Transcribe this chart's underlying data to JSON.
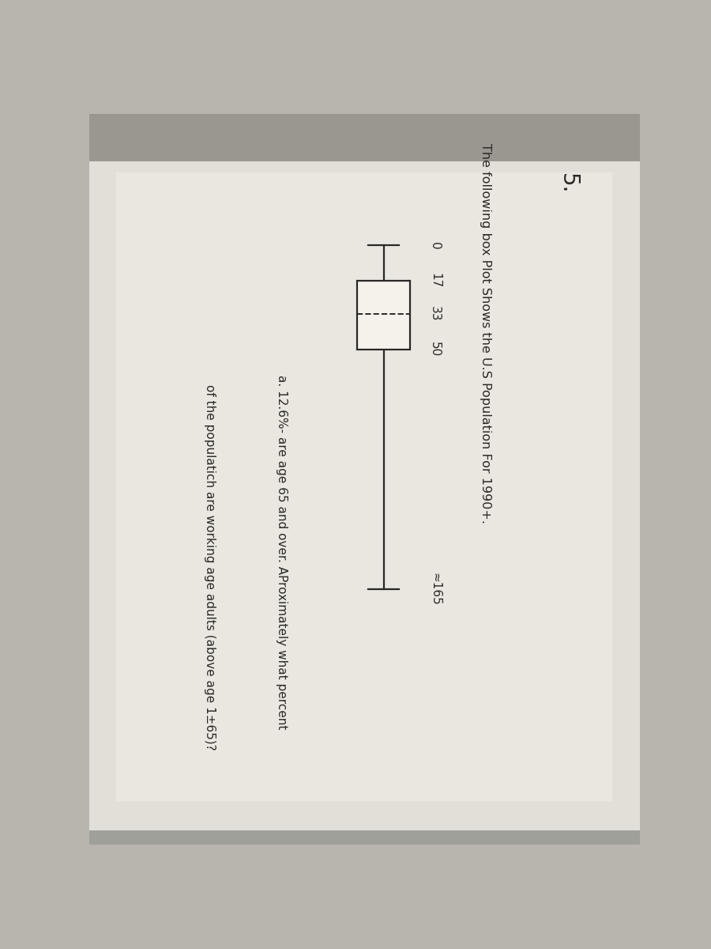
{
  "bg_top_color": "#b8b4ae",
  "bg_bottom_color": "#c8c4be",
  "page_color": "#dedad4",
  "page_inner_color": "#e8e5df",
  "title_number": "5.",
  "title_text": "The following box Plot Shows the U.S Population For 1990+.",
  "boxplot": {
    "min_val": 0,
    "q1": 17,
    "median": 33,
    "q3": 50,
    "max_val": 165
  },
  "tick_labels": [
    "0",
    "17",
    "33",
    "50",
    "≈165"
  ],
  "tick_values": [
    0,
    17,
    33,
    50,
    165
  ],
  "question_a": "a. 12.6%- are age 65 and over. AProximately what percent",
  "question_b": "of the populatich are working age adults (above age 1±65)?",
  "text_color": "#2a2825",
  "line_color": "#2a2825",
  "box_face": "#f5f2ec"
}
